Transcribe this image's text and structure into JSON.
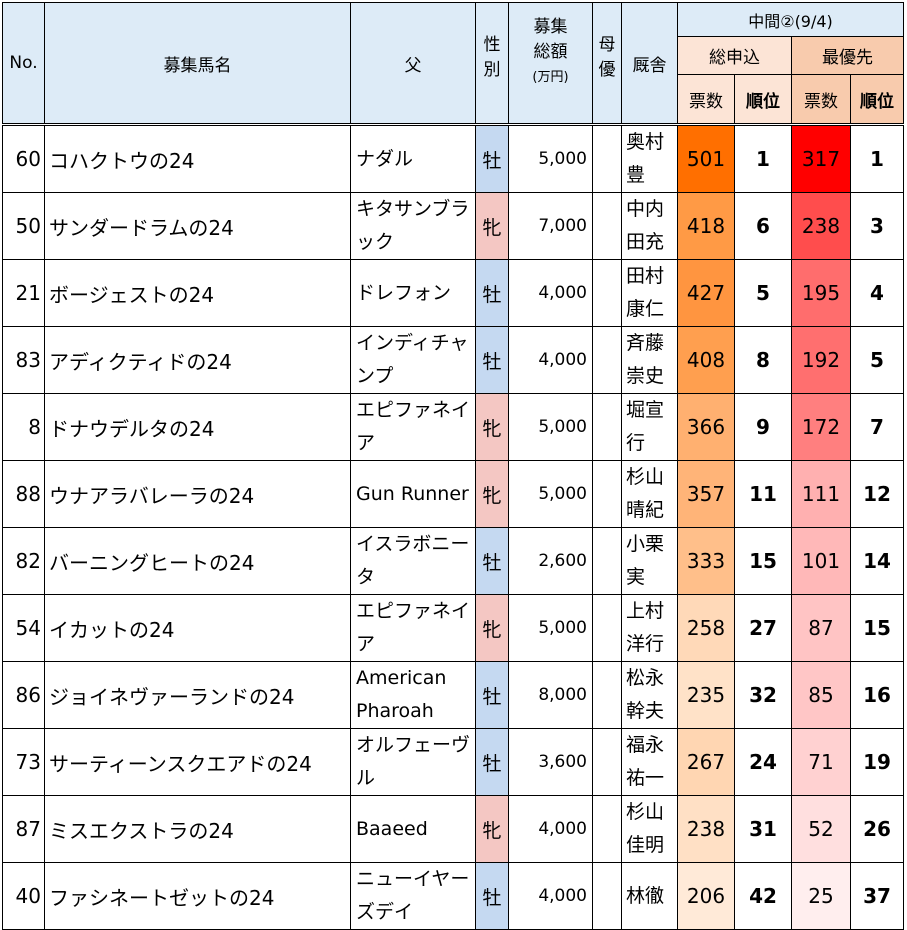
{
  "header": {
    "no": "No.",
    "name": "募集馬名",
    "sire": "父",
    "sex": "性別",
    "price": "募集総額",
    "price_unit": "(万円)",
    "dam_priority": "母優",
    "stable": "厩舎",
    "interim": "中間②(9/4)",
    "total": "総申込",
    "best": "最優先",
    "votes": "票数",
    "rank": "順位"
  },
  "colors": {
    "male_sex": "#c5d9f1",
    "female_sex": "#f4c7c3",
    "header_blue": "#ddebf7",
    "header_total": "#fce4d6",
    "header_best": "#f8cbad"
  },
  "rows": [
    {
      "no": "60",
      "name": "コハクトウの24",
      "sire": "ナダル",
      "sex": "牡",
      "sex_type": "male",
      "price": "5,000",
      "trainer": "奥村豊",
      "total_votes": "501",
      "total_rank": "1",
      "best_votes": "317",
      "best_rank": "1",
      "total_color": "#ff6f00",
      "best_color": "#ff0000"
    },
    {
      "no": "50",
      "name": "サンダードラムの24",
      "sire": "キタサンブラック",
      "sex": "牝",
      "sex_type": "female",
      "price": "7,000",
      "trainer": "中内田充",
      "total_votes": "418",
      "total_rank": "6",
      "best_votes": "238",
      "best_rank": "3",
      "total_color": "#ff9a45",
      "best_color": "#ff4d4d"
    },
    {
      "no": "21",
      "name": "ボージェストの24",
      "sire": "ドレフォン",
      "sex": "牡",
      "sex_type": "male",
      "price": "4,000",
      "trainer": "田村康仁",
      "total_votes": "427",
      "total_rank": "5",
      "best_votes": "195",
      "best_rank": "4",
      "total_color": "#ff9540",
      "best_color": "#ff6d6d"
    },
    {
      "no": "83",
      "name": "アディクティドの24",
      "sire": "インディチャンプ",
      "sex": "牡",
      "sex_type": "male",
      "price": "4,000",
      "trainer": "斉藤崇史",
      "total_votes": "408",
      "total_rank": "8",
      "best_votes": "192",
      "best_rank": "5",
      "total_color": "#ff9f4f",
      "best_color": "#ff6f6f"
    },
    {
      "no": "8",
      "name": "ドナウデルタの24",
      "sire": "エピファネイア",
      "sex": "牝",
      "sex_type": "female",
      "price": "5,000",
      "trainer": "堀宣行",
      "total_votes": "366",
      "total_rank": "9",
      "best_votes": "172",
      "best_rank": "7",
      "total_color": "#ffb070",
      "best_color": "#ff7f7f"
    },
    {
      "no": "88",
      "name": "ウナアラバレーラの24",
      "sire": "Gun Runner",
      "sex": "牝",
      "sex_type": "female",
      "price": "5,000",
      "trainer": "杉山晴紀",
      "total_votes": "357",
      "total_rank": "11",
      "best_votes": "111",
      "best_rank": "12",
      "total_color": "#ffb478",
      "best_color": "#ffb0b0"
    },
    {
      "no": "82",
      "name": "バーニングヒートの24",
      "sire": "イスラボニータ",
      "sex": "牡",
      "sex_type": "male",
      "price": "2,600",
      "trainer": "小栗実",
      "total_votes": "333",
      "total_rank": "15",
      "best_votes": "101",
      "best_rank": "14",
      "total_color": "#ffbf8a",
      "best_color": "#ffb8b8"
    },
    {
      "no": "54",
      "name": "イカットの24",
      "sire": "エピファネイア",
      "sex": "牝",
      "sex_type": "female",
      "price": "5,000",
      "trainer": "上村洋行",
      "total_votes": "258",
      "total_rank": "27",
      "best_votes": "87",
      "best_rank": "15",
      "total_color": "#ffd9b8",
      "best_color": "#ffc4c4"
    },
    {
      "no": "86",
      "name": "ジョイネヴァーランドの24",
      "sire": "American Pharoah",
      "sex": "牡",
      "sex_type": "male",
      "price": "8,000",
      "trainer": "松永幹夫",
      "total_votes": "235",
      "total_rank": "32",
      "best_votes": "85",
      "best_rank": "16",
      "total_color": "#ffe2c8",
      "best_color": "#ffc6c6"
    },
    {
      "no": "73",
      "name": "サーティーンスクエアドの24",
      "sire": "オルフェーヴル",
      "sex": "牡",
      "sex_type": "male",
      "price": "3,600",
      "trainer": "福永祐一",
      "total_votes": "267",
      "total_rank": "24",
      "best_votes": "71",
      "best_rank": "19",
      "total_color": "#ffd6b2",
      "best_color": "#ffd1d1"
    },
    {
      "no": "87",
      "name": "ミスエクストラの24",
      "sire": "Baaeed",
      "sex": "牝",
      "sex_type": "female",
      "price": "4,000",
      "trainer": "杉山佳明",
      "total_votes": "238",
      "total_rank": "31",
      "best_votes": "52",
      "best_rank": "26",
      "total_color": "#ffe0c5",
      "best_color": "#ffdfdf"
    },
    {
      "no": "40",
      "name": "ファシネートゼットの24",
      "sire": "ニューイヤーズデイ",
      "sex": "牡",
      "sex_type": "male",
      "price": "4,000",
      "trainer": "林徹",
      "total_votes": "206",
      "total_rank": "42",
      "best_votes": "25",
      "best_rank": "37",
      "total_color": "#ffead8",
      "best_color": "#ffeeee"
    }
  ]
}
